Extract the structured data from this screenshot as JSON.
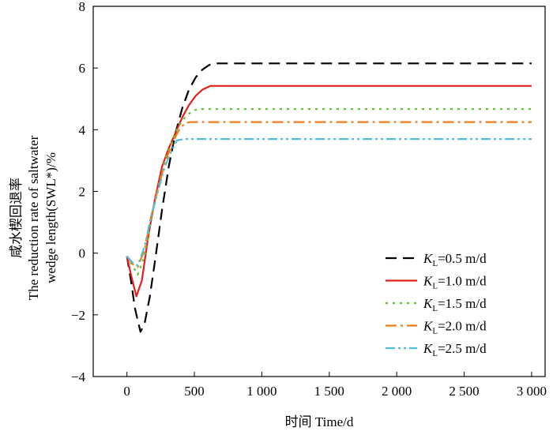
{
  "chart_data": {
    "type": "line",
    "xlabel": "时间 Time/d",
    "ylabel_lines": [
      "咸水楔回退率",
      "The reduction rate of saltwater",
      "wedge length(SWL*)/%"
    ],
    "xlim": [
      -250,
      3100
    ],
    "ylim": [
      -4,
      8
    ],
    "xticks": [
      0,
      500,
      1000,
      1500,
      2000,
      2500,
      3000
    ],
    "xtick_labels": [
      "0",
      "500",
      "1 000",
      "1 500",
      "2 000",
      "2 500",
      "3 000"
    ],
    "yticks": [
      -4,
      -2,
      0,
      2,
      4,
      6,
      8
    ],
    "ytick_labels": [
      "−4",
      "−2",
      "0",
      "2",
      "4",
      "6",
      "8"
    ],
    "grid": false,
    "legend_position": "bottom-right",
    "series": [
      {
        "name": "KL=0.5 m/d",
        "legend_label": {
          "prefix": "K",
          "sub": "L",
          "rest": "=0.5 m/d"
        },
        "color": "#000000",
        "dash": "14,8",
        "x": [
          0,
          30,
          60,
          100,
          130,
          170,
          210,
          260,
          310,
          360,
          410,
          460,
          510,
          560,
          610,
          660,
          700,
          3000
        ],
        "y": [
          -0.1,
          -0.9,
          -1.8,
          -2.55,
          -2.3,
          -1.4,
          -0.2,
          1.4,
          2.8,
          3.9,
          4.7,
          5.3,
          5.7,
          5.95,
          6.1,
          6.15,
          6.15,
          6.15
        ]
      },
      {
        "name": "KL=1.0 m/d",
        "legend_label": {
          "prefix": "K",
          "sub": "L",
          "rest": "=1.0 m/d"
        },
        "color": "#e3201b",
        "dash": "",
        "x": [
          0,
          30,
          70,
          110,
          160,
          210,
          260,
          310,
          360,
          410,
          460,
          510,
          560,
          620,
          680,
          3000
        ],
        "y": [
          -0.1,
          -0.7,
          -1.4,
          -0.9,
          0.6,
          1.8,
          2.8,
          3.4,
          3.9,
          4.4,
          4.8,
          5.1,
          5.3,
          5.42,
          5.42,
          5.42
        ]
      },
      {
        "name": "KL=1.5 m/d",
        "legend_label": {
          "prefix": "K",
          "sub": "L",
          "rest": "=1.5 m/d"
        },
        "color": "#5cc530",
        "dash": "3,6",
        "x": [
          0,
          40,
          80,
          130,
          180,
          230,
          280,
          330,
          380,
          430,
          480,
          530,
          3000
        ],
        "y": [
          -0.1,
          -0.4,
          -0.7,
          -0.1,
          1.1,
          2.1,
          3.0,
          3.6,
          4.1,
          4.4,
          4.6,
          4.67,
          4.67
        ]
      },
      {
        "name": "KL=2.0 m/d",
        "legend_label": {
          "prefix": "K",
          "sub": "L",
          "rest": "=2.0 m/d"
        },
        "color": "#f07c1a",
        "dash": "14,5,3,5",
        "x": [
          0,
          40,
          80,
          130,
          180,
          230,
          280,
          330,
          380,
          430,
          470,
          3000
        ],
        "y": [
          -0.1,
          -0.35,
          -0.45,
          0.1,
          1.2,
          2.1,
          2.9,
          3.5,
          3.95,
          4.22,
          4.25,
          4.25
        ]
      },
      {
        "name": "KL=2.5 m/d",
        "legend_label": {
          "prefix": "K",
          "sub": "L",
          "rest": "=2.5 m/d"
        },
        "color": "#4dbfd8",
        "dash": "12,4,3,4,3,4",
        "x": [
          0,
          40,
          80,
          130,
          180,
          230,
          280,
          330,
          370,
          420,
          3000
        ],
        "y": [
          -0.1,
          -0.3,
          -0.4,
          0.2,
          1.2,
          2.0,
          2.8,
          3.3,
          3.65,
          3.7,
          3.7
        ]
      }
    ]
  }
}
